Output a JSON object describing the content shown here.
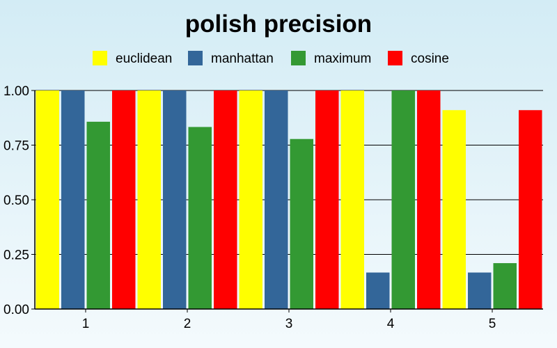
{
  "chart_data": {
    "type": "bar",
    "title": "polish precision",
    "categories": [
      "1",
      "2",
      "3",
      "4",
      "5"
    ],
    "series": [
      {
        "name": "euclidean",
        "color": "#ffff00",
        "values": [
          1.0,
          1.0,
          1.0,
          1.0,
          0.91
        ]
      },
      {
        "name": "manhattan",
        "color": "#336699",
        "values": [
          1.0,
          1.0,
          1.0,
          0.167,
          0.167
        ]
      },
      {
        "name": "maximum",
        "color": "#339933",
        "values": [
          0.857,
          0.833,
          0.778,
          1.0,
          0.21
        ]
      },
      {
        "name": "cosine",
        "color": "#ff0000",
        "values": [
          1.0,
          1.0,
          1.0,
          1.0,
          0.91
        ]
      }
    ],
    "yticks": [
      "0.00",
      "0.25",
      "0.50",
      "0.75",
      "1.00"
    ],
    "ylim": [
      0,
      1
    ],
    "grid": true,
    "legend_position": "top"
  }
}
